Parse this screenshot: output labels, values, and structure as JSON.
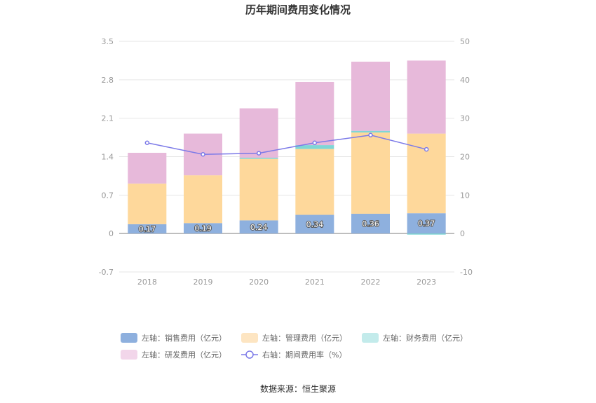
{
  "chart_data": {
    "type": "bar",
    "stacked": true,
    "title": "历年期间费用变化情况",
    "categories": [
      "2018",
      "2019",
      "2020",
      "2021",
      "2022",
      "2023"
    ],
    "left_axis": {
      "min": -0.7,
      "max": 3.5,
      "ticks": [
        "-0.7",
        "0",
        "0.7",
        "1.4",
        "2.1",
        "2.8",
        "3.5"
      ]
    },
    "right_axis": {
      "min": -10,
      "max": 50,
      "ticks": [
        "-10",
        "0",
        "10",
        "20",
        "30",
        "40",
        "50"
      ]
    },
    "series": [
      {
        "name": "左轴：销售费用（亿元）",
        "color": "#8eb0de",
        "values": [
          0.17,
          0.19,
          0.24,
          0.34,
          0.36,
          0.37
        ],
        "labels": [
          "0.17",
          "0.19",
          "0.24",
          "0.34",
          "0.36",
          "0.37"
        ]
      },
      {
        "name": "左轴：管理费用（亿元）",
        "color": "#fed89b",
        "values": [
          0.74,
          0.87,
          1.12,
          1.2,
          1.48,
          1.45
        ]
      },
      {
        "name": "左轴：财务费用（亿元）",
        "color": "#7fd6d6",
        "values": [
          0.0,
          0.0,
          0.02,
          0.07,
          0.03,
          -0.02
        ]
      },
      {
        "name": "左轴：研发费用（亿元）",
        "color": "#e7b9da",
        "values": [
          0.56,
          0.76,
          0.9,
          1.15,
          1.26,
          1.33
        ]
      }
    ],
    "line": {
      "name": "右轴：期间费用率（%）",
      "color": "#7c7ae8",
      "values": [
        23.6,
        20.6,
        20.9,
        23.6,
        25.6,
        21.9
      ]
    },
    "legend_swatch_colors": [
      "#8eb0de",
      "#fde5c2",
      "#c3ebeb",
      "#f2d6ea"
    ]
  },
  "source": "数据来源：恒生聚源"
}
